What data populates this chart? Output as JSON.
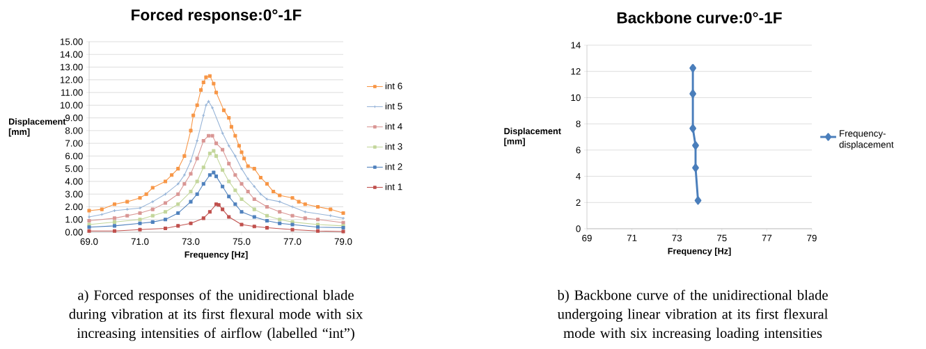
{
  "chart_data": [
    {
      "type": "line",
      "title": "Forced response:0°-1F",
      "xlabel": "Frequency [Hz]",
      "ylabel": "Displacement [mm]",
      "xlim": [
        69,
        79
      ],
      "ylim": [
        0,
        15
      ],
      "xticks": [
        {
          "value": 69,
          "label": "69.0"
        },
        {
          "value": 71,
          "label": "71.0"
        },
        {
          "value": 73,
          "label": "73.0"
        },
        {
          "value": 75,
          "label": "75.0"
        },
        {
          "value": 77,
          "label": "77.0"
        },
        {
          "value": 79,
          "label": "79.0"
        }
      ],
      "yticks": [
        {
          "value": 0,
          "label": "0.00"
        },
        {
          "value": 1,
          "label": "1.00"
        },
        {
          "value": 2,
          "label": "2.00"
        },
        {
          "value": 3,
          "label": "3.00"
        },
        {
          "value": 4,
          "label": "4.00"
        },
        {
          "value": 5,
          "label": "5.00"
        },
        {
          "value": 6,
          "label": "6.00"
        },
        {
          "value": 7,
          "label": "7.00"
        },
        {
          "value": 8,
          "label": "8.00"
        },
        {
          "value": 9,
          "label": "9.00"
        },
        {
          "value": 10,
          "label": "10.00"
        },
        {
          "value": 11,
          "label": "11.00"
        },
        {
          "value": 12,
          "label": "12.00"
        },
        {
          "value": 13,
          "label": "13.00"
        },
        {
          "value": 14,
          "label": "14.00"
        },
        {
          "value": 15,
          "label": "15.00"
        }
      ],
      "grid": "y",
      "legend": "right",
      "series": [
        {
          "name": "int 6",
          "color": "#f79646",
          "marker": "square",
          "x": [
            69,
            69.5,
            70,
            70.5,
            71,
            71.25,
            71.5,
            72,
            72.25,
            72.5,
            72.75,
            73,
            73.1,
            73.25,
            73.4,
            73.5,
            73.6,
            73.75,
            73.9,
            74,
            74.3,
            74.5,
            74.6,
            74.75,
            74.9,
            75,
            75.1,
            75.25,
            75.5,
            75.75,
            76,
            76.25,
            76.5,
            77,
            77.25,
            77.5,
            78,
            78.5,
            79
          ],
          "values": [
            1.7,
            1.8,
            2.2,
            2.4,
            2.7,
            3.0,
            3.5,
            4.0,
            4.5,
            5.0,
            6.0,
            8.0,
            9.2,
            10.0,
            11.2,
            11.8,
            12.2,
            12.3,
            11.7,
            11.0,
            9.6,
            9.0,
            8.3,
            7.6,
            6.8,
            6.3,
            5.8,
            5.2,
            5.0,
            4.3,
            3.8,
            3.2,
            2.9,
            2.7,
            2.4,
            2.2,
            2.0,
            1.8,
            1.5
          ]
        },
        {
          "name": "int 5",
          "color": "#95b3d7",
          "marker": "cross",
          "x": [
            69,
            69.5,
            70,
            70.5,
            71,
            71.5,
            72,
            72.5,
            72.75,
            73,
            73.25,
            73.5,
            73.6,
            73.7,
            73.85,
            74.25,
            74.5,
            74.75,
            75,
            75.25,
            75.5,
            75.75,
            76,
            76.5,
            77,
            77.5,
            78.5,
            79
          ],
          "values": [
            1.2,
            1.4,
            1.7,
            1.8,
            1.9,
            2.4,
            3.0,
            3.8,
            4.5,
            5.6,
            7.2,
            9.2,
            10.0,
            10.3,
            9.8,
            7.8,
            6.8,
            6.0,
            5.0,
            4.2,
            3.6,
            3.0,
            2.6,
            2.4,
            2.0,
            1.6,
            1.3,
            1.1
          ]
        },
        {
          "name": "int 4",
          "color": "#d99694",
          "marker": "square",
          "x": [
            69,
            70,
            70.5,
            71,
            71.5,
            72,
            72.5,
            72.75,
            73,
            73.25,
            73.5,
            73.7,
            73.85,
            74,
            74.25,
            74.5,
            74.75,
            75,
            75.25,
            75.5,
            76,
            76.5,
            77,
            77.5,
            78,
            79
          ],
          "values": [
            0.9,
            1.1,
            1.3,
            1.5,
            1.8,
            2.3,
            3.0,
            3.8,
            4.6,
            5.8,
            7.2,
            7.6,
            7.6,
            7.0,
            6.5,
            5.4,
            4.5,
            3.8,
            3.2,
            2.6,
            2.0,
            1.6,
            1.3,
            1.1,
            1.0,
            0.75
          ]
        },
        {
          "name": "int 3",
          "color": "#c3d69b",
          "marker": "square",
          "x": [
            69,
            70,
            71,
            71.5,
            72,
            72.5,
            73,
            73.25,
            73.5,
            73.75,
            73.9,
            74,
            74.25,
            74.5,
            74.75,
            75,
            75.5,
            76,
            76.5,
            77,
            78,
            79
          ],
          "values": [
            0.6,
            0.8,
            1.0,
            1.3,
            1.6,
            2.2,
            3.2,
            4.0,
            5.1,
            6.2,
            6.4,
            6.0,
            4.9,
            4.0,
            3.3,
            2.6,
            1.8,
            1.3,
            1.0,
            0.8,
            0.6,
            0.5
          ]
        },
        {
          "name": "int 2",
          "color": "#4f81bd",
          "marker": "square",
          "x": [
            69,
            70,
            71,
            71.5,
            72,
            72.5,
            73,
            73.25,
            73.5,
            73.75,
            73.9,
            74,
            74.25,
            74.5,
            74.75,
            75,
            75.5,
            76,
            76.5,
            77,
            78,
            79
          ],
          "values": [
            0.4,
            0.5,
            0.7,
            0.8,
            1.0,
            1.5,
            2.4,
            3.0,
            3.8,
            4.5,
            4.7,
            4.4,
            3.6,
            2.8,
            2.2,
            1.6,
            1.2,
            0.9,
            0.7,
            0.6,
            0.4,
            0.35
          ]
        },
        {
          "name": "int 1",
          "color": "#c0504d",
          "marker": "square",
          "x": [
            69,
            70,
            71,
            72,
            72.5,
            73,
            73.5,
            73.75,
            74,
            74.1,
            74.25,
            74.5,
            75,
            75.5,
            76,
            77,
            78,
            79
          ],
          "values": [
            0.1,
            0.1,
            0.2,
            0.3,
            0.5,
            0.7,
            1.1,
            1.6,
            2.2,
            2.15,
            1.8,
            1.2,
            0.6,
            0.45,
            0.35,
            0.2,
            0.1,
            0.05
          ]
        }
      ],
      "annotations": [
        "a) Forced responses of the unidirectional blade during vibration at its first flexural mode with six increasing intensities of airflow (labelled “int”)"
      ]
    },
    {
      "type": "line",
      "title": "Backbone curve:0°-1F",
      "xlabel": "Frequency [Hz]",
      "ylabel": "Displacement [mm]",
      "xlim": [
        69,
        79
      ],
      "ylim": [
        0,
        14
      ],
      "xticks": [
        69,
        71,
        73,
        75,
        77,
        79
      ],
      "yticks": [
        0,
        2,
        4,
        6,
        8,
        10,
        12,
        14
      ],
      "grid": "y",
      "legend": "right",
      "series": [
        {
          "name": "Frequency-displacement",
          "color": "#4a7ebb",
          "marker": "diamond",
          "x": [
            73.94,
            73.83,
            73.83,
            73.71,
            73.71,
            73.71
          ],
          "values": [
            2.15,
            4.65,
            6.35,
            7.65,
            10.3,
            12.25
          ]
        }
      ],
      "annotations": [
        "b) Backbone curve of the unidirectional blade undergoing linear vibration at its first flexural mode with six increasing loading intensities"
      ]
    }
  ]
}
